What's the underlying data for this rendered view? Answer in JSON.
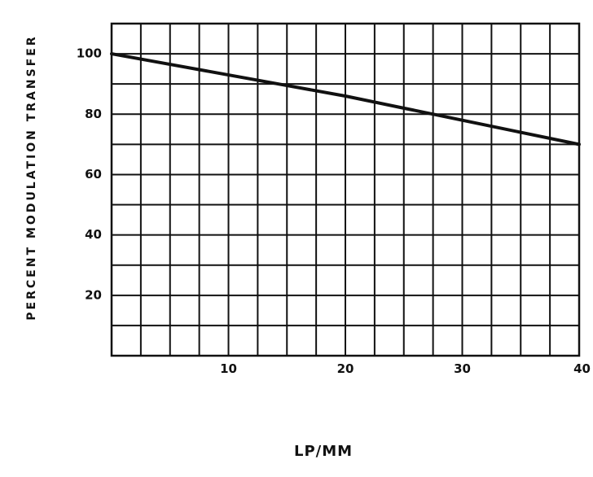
{
  "chart_data": {
    "type": "line",
    "title": "",
    "xlabel": "LP/MM",
    "ylabel": "PERCENT  MODULATION  TRANSFER",
    "xlim": [
      0,
      40
    ],
    "ylim": [
      0,
      110
    ],
    "x_ticks": [
      10,
      20,
      30,
      40
    ],
    "y_ticks": [
      20,
      40,
      60,
      80,
      100
    ],
    "grid": true,
    "legend": "none",
    "colors": {
      "line": "#111111",
      "grid": "#111111",
      "background": "#ffffff"
    },
    "series": [
      {
        "x": [
          0,
          5,
          10,
          15,
          20,
          25,
          30,
          35,
          40
        ],
        "y": [
          100,
          96.5,
          93,
          89.5,
          86,
          82,
          78,
          74,
          70
        ]
      }
    ]
  }
}
